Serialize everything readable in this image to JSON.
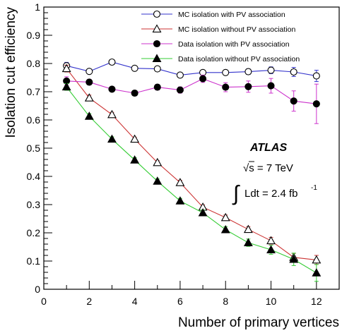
{
  "chart_data": {
    "type": "line",
    "xlabel": "Number of primary vertices",
    "ylabel": "Isolation cut efficiency",
    "xlim": [
      0,
      13
    ],
    "ylim": [
      0,
      1
    ],
    "x_ticks": [
      0,
      2,
      4,
      6,
      8,
      10,
      12
    ],
    "y_ticks": [
      0,
      0.1,
      0.2,
      0.3,
      0.4,
      0.5,
      0.6,
      0.7,
      0.8,
      0.9,
      1
    ],
    "legend_position": "top-right",
    "grid": false,
    "series": [
      {
        "name": "MC isolation with PV association",
        "color": "#3333cc",
        "marker": "open-circle",
        "x": [
          1,
          2,
          3,
          4,
          5,
          6,
          7,
          8,
          9,
          10,
          11,
          12
        ],
        "y": [
          0.792,
          0.772,
          0.805,
          0.783,
          0.781,
          0.759,
          0.768,
          0.768,
          0.771,
          0.776,
          0.77,
          0.756
        ],
        "yerr": [
          0.012,
          0.008,
          0.007,
          0.006,
          0.006,
          0.007,
          0.008,
          0.009,
          0.01,
          0.012,
          0.016,
          0.02
        ]
      },
      {
        "name": "MC isolation without PV association",
        "color": "#cc3333",
        "marker": "open-triangle",
        "x": [
          1,
          2,
          3,
          4,
          5,
          6,
          7,
          8,
          9,
          10,
          11,
          12
        ],
        "y": [
          0.782,
          0.678,
          0.619,
          0.532,
          0.449,
          0.378,
          0.291,
          0.254,
          0.212,
          0.172,
          0.113,
          0.104
        ],
        "yerr": [
          0.012,
          0.01,
          0.008,
          0.007,
          0.007,
          0.008,
          0.008,
          0.009,
          0.01,
          0.012,
          0.014,
          0.016
        ]
      },
      {
        "name": "Data isolation with PV association",
        "color": "#cc33cc",
        "marker": "filled-circle",
        "x": [
          1,
          2,
          3,
          4,
          5,
          6,
          7,
          8,
          9,
          10,
          11,
          12
        ],
        "y": [
          0.738,
          0.734,
          0.709,
          0.695,
          0.716,
          0.706,
          0.746,
          0.716,
          0.718,
          0.721,
          0.667,
          0.657
        ],
        "yerr": [
          0.015,
          0.01,
          0.009,
          0.009,
          0.01,
          0.011,
          0.013,
          0.016,
          0.02,
          0.026,
          0.036,
          0.07
        ]
      },
      {
        "name": "Data isolation without PV association",
        "color": "#33cc33",
        "marker": "filled-triangle",
        "x": [
          1,
          2,
          3,
          4,
          5,
          6,
          7,
          8,
          9,
          10,
          11,
          12
        ],
        "y": [
          0.717,
          0.613,
          0.532,
          0.458,
          0.383,
          0.313,
          0.271,
          0.211,
          0.165,
          0.14,
          0.106,
          0.058
        ],
        "yerr": [
          0.012,
          0.009,
          0.008,
          0.008,
          0.008,
          0.009,
          0.01,
          0.011,
          0.013,
          0.016,
          0.022,
          0.03
        ]
      }
    ],
    "annotations": {
      "experiment": "ATLAS",
      "energy": "√s = 7 TeV",
      "lumi_integral": "∫",
      "lumi_text": "Ldt = 2.4 fb",
      "lumi_exponent": "-1"
    }
  }
}
